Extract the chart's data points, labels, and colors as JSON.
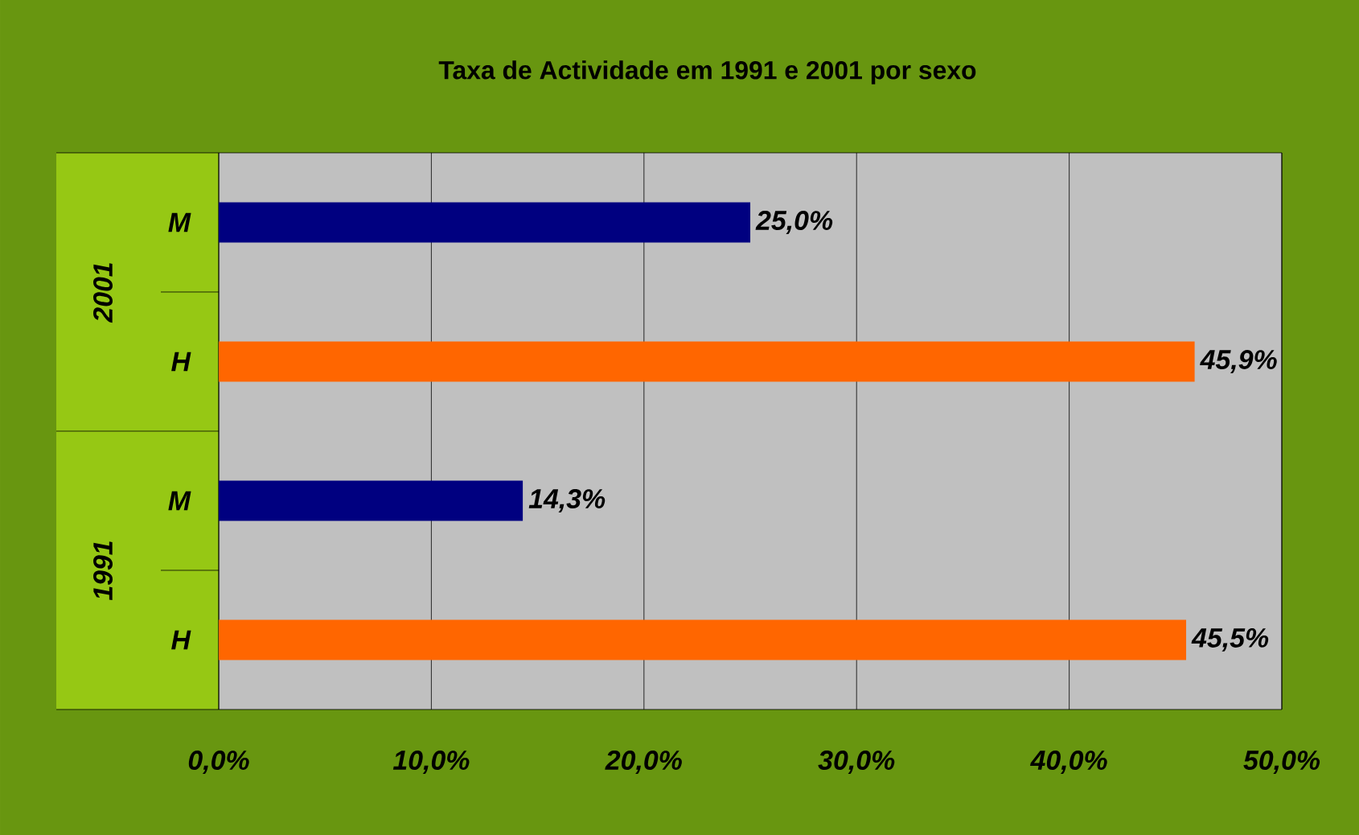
{
  "chart_data": {
    "type": "bar",
    "orientation": "horizontal",
    "title": "Taxa de Actividade em 1991 e 2001 por sexo",
    "categories": [
      "M",
      "H",
      "M",
      "H"
    ],
    "values": [
      25.0,
      45.9,
      14.3,
      45.5
    ],
    "colors": [
      "#000080",
      "#ff6600",
      "#000080",
      "#ff6600"
    ],
    "value_labels": [
      "25,0%",
      "45,9%",
      "14,3%",
      "45,5%"
    ],
    "annotations": [
      "2001",
      "1991"
    ],
    "xlim": [
      0,
      50
    ],
    "xticks": [
      {
        "value": 0,
        "label": "0,0%"
      },
      {
        "value": 10,
        "label": "10,0%"
      },
      {
        "value": 20,
        "label": "20,0%"
      },
      {
        "value": 30,
        "label": "30,0%"
      },
      {
        "value": 40,
        "label": "40,0%"
      },
      {
        "value": 50,
        "label": "50,0%"
      }
    ],
    "grid": "x"
  }
}
